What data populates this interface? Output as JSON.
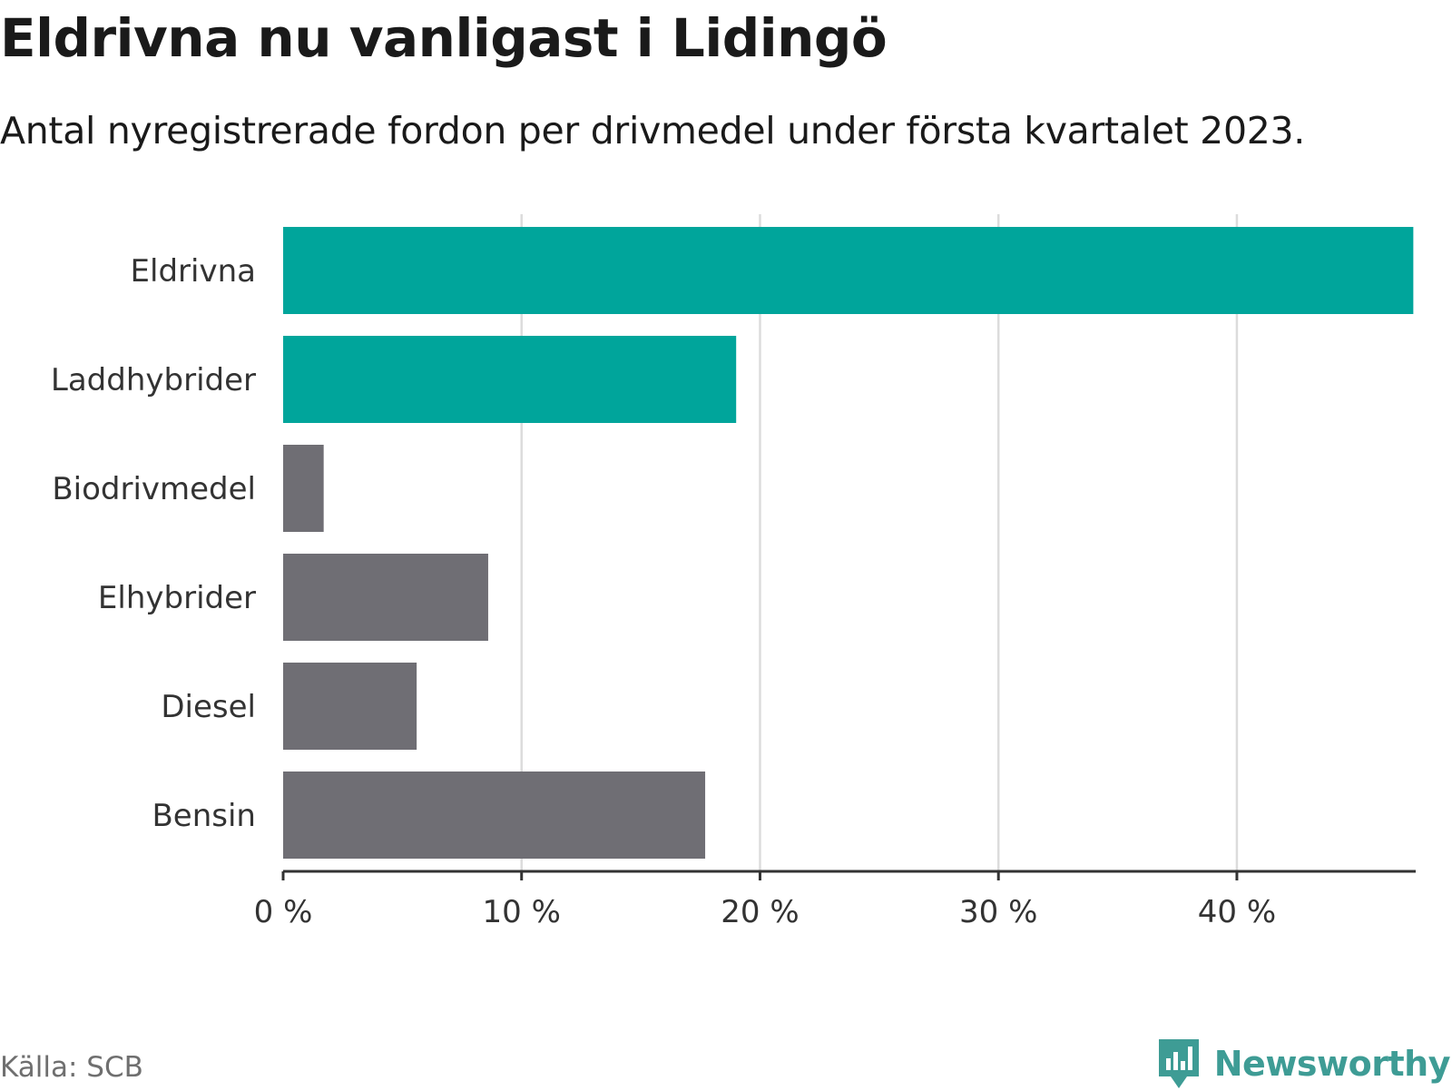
{
  "header": {
    "title": "Eldrivna nu vanligast i Lidingö",
    "subtitle": "Antal nyregistrerade fordon per drivmedel under första kvartalet 2023."
  },
  "footer": {
    "source": "Källa: SCB",
    "brand": "Newsworthy"
  },
  "colors": {
    "highlight": "#00a59b",
    "default": "#6f6e74",
    "grid": "#dcdcdc",
    "axis": "#333333",
    "brand": "#3e9c95"
  },
  "chart_data": {
    "type": "bar",
    "orientation": "horizontal",
    "title": "Eldrivna nu vanligast i Lidingö",
    "subtitle": "Antal nyregistrerade fordon per drivmedel under första kvartalet 2023.",
    "xlabel": "",
    "ylabel": "",
    "unit": "%",
    "xlim": [
      0,
      47.5
    ],
    "ticks": [
      0,
      10,
      20,
      30,
      40
    ],
    "tick_labels": [
      "0 %",
      "10 %",
      "20 %",
      "30 %",
      "40 %"
    ],
    "grid": true,
    "categories": [
      "Eldrivna",
      "Laddhybrider",
      "Biodrivmedel",
      "Elhybrider",
      "Diesel",
      "Bensin"
    ],
    "values": [
      47.4,
      19.0,
      1.7,
      8.6,
      5.6,
      17.7
    ],
    "highlighted": [
      true,
      true,
      false,
      false,
      false,
      false
    ]
  }
}
